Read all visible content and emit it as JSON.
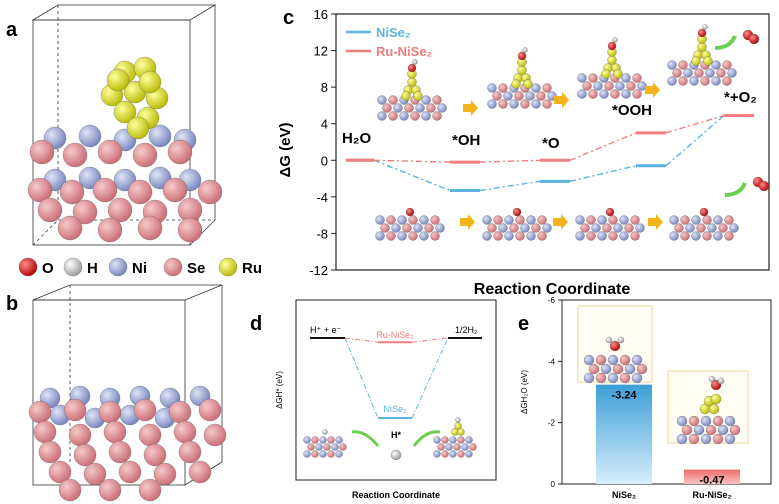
{
  "panels": {
    "a": "a",
    "b": "b",
    "c": "c",
    "d": "d",
    "e": "e"
  },
  "legend_atoms": [
    {
      "label": "O",
      "color": "#e02020"
    },
    {
      "label": "H",
      "color": "#d9d9d9"
    },
    {
      "label": "Ni",
      "color": "#9aa6d8"
    },
    {
      "label": "Se",
      "color": "#e08a8a"
    },
    {
      "label": "Ru",
      "color": "#e6e61c"
    }
  ],
  "colors": {
    "nise2": "#5ab4dd",
    "ru_nise2": "#ef7d7d",
    "arrow_yellow": "#f5b21a",
    "arrow_green": "#6ccf4f"
  },
  "chart_data": [
    {
      "id": "c",
      "type": "line",
      "ylabel": "ΔG (eV)",
      "xlabel": "Reaction Coordinate",
      "ylim": [
        -12,
        16
      ],
      "yticks": [
        "16",
        "12",
        "8",
        "4",
        "0",
        "-4",
        "-8",
        "-12"
      ],
      "step_labels": [
        "H₂O",
        "*OH",
        "*O",
        "*OOH",
        "*+O₂"
      ],
      "series": [
        {
          "name": "NiSe₂",
          "values": [
            0,
            -3.3,
            -2.3,
            -0.6,
            4.9
          ]
        },
        {
          "name": "Ru-NiSe₂",
          "values": [
            0,
            -0.2,
            0,
            3.0,
            4.9
          ]
        }
      ]
    },
    {
      "id": "d",
      "type": "line",
      "ylabel": "ΔGH* (eV)",
      "xlabel": "Reaction Coordinate",
      "step_labels": [
        "H⁺ + e⁻",
        "H*",
        "1/2H₂"
      ],
      "series": [
        {
          "name": "Ru-NiSe₂",
          "values": [
            0,
            -0.1,
            0
          ]
        },
        {
          "name": "NiSe₂",
          "values": [
            0,
            -1.9,
            0
          ]
        }
      ]
    },
    {
      "id": "e",
      "type": "bar",
      "ylabel": "ΔGH₂O (eV)",
      "ylim": [
        0,
        -6
      ],
      "yticks": [
        "-6",
        "-4",
        "-2",
        "0"
      ],
      "categories": [
        "NiSe₂",
        "Ru-NiSe₂"
      ],
      "values": [
        -3.24,
        -0.47
      ],
      "value_labels": [
        "-3.24",
        "-0.47"
      ]
    }
  ]
}
